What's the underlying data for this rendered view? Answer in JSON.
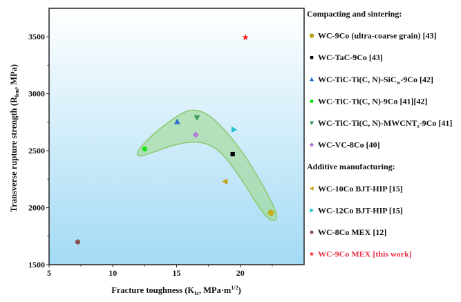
{
  "chart_data": {
    "type": "scatter",
    "xlabel": "Fracture toughness (K",
    "xlabel_sub": "Ic",
    "xlabel_tail": ", MPa·m",
    "xlabel_sup": "1/2",
    "xlabel_end": ")",
    "ylabel": "Transverse rupture strength (R",
    "ylabel_sub": "bm",
    "ylabel_tail": ", MPa)",
    "xlim": [
      5,
      25
    ],
    "ylim": [
      1500,
      3750
    ],
    "xticks": [
      5,
      10,
      15,
      20
    ],
    "yticks": [
      1500,
      2000,
      2500,
      3000,
      3500
    ],
    "grid": false,
    "legend_placement": "right-outside",
    "background": "gradient white to light blue",
    "legend_groups": [
      {
        "title": "Compacting and sintering:",
        "series": [
          0,
          1,
          2,
          3,
          4,
          5
        ]
      },
      {
        "title": "Additive manufacturing:",
        "series": [
          6,
          7,
          8,
          9
        ]
      }
    ],
    "series": [
      {
        "name": "WC-9Co (ultra-coarse grain) [43]",
        "marker": "plus-circle",
        "color": "#e8d21c",
        "x": 22.4,
        "y": 1955
      },
      {
        "name": "WC-TaC-9Co [43]",
        "marker": "square",
        "color": "#000000",
        "x": 19.4,
        "y": 2470
      },
      {
        "name": "WC-TiC-Ti(C, N)-SiC",
        "name_sub": "w",
        "name_tail": "-9Co [42]",
        "marker": "triangle-up",
        "color": "#2a6fd0",
        "x": 15.05,
        "y": 2755
      },
      {
        "name": "WC-TiC-Ti(C, N)-9Co [41][42]",
        "marker": "circle",
        "color": "#11e611",
        "x": 12.5,
        "y": 2515
      },
      {
        "name": "WC-TiC-Ti(C, N)-MWCNT",
        "name_sub": "s",
        "name_tail": "-9Co [41]",
        "marker": "triangle-down",
        "color": "#3a9a5c",
        "x": 16.6,
        "y": 2790
      },
      {
        "name": "WC-VC-8Co [40]",
        "marker": "diamond",
        "color": "#b07ad6",
        "x": 16.5,
        "y": 2640
      },
      {
        "name": "WC-10Co BJT-HIP [15]",
        "marker": "triangle-left",
        "color": "#c9a020",
        "x": 18.8,
        "y": 2230
      },
      {
        "name": "WC-12Co BJT-HIP [15]",
        "marker": "triangle-right",
        "color": "#1fc4d2",
        "x": 19.5,
        "y": 2685
      },
      {
        "name": "WC-8Co MEX [12]",
        "marker": "circle",
        "color": "#8a5050",
        "x": 7.25,
        "y": 1700
      },
      {
        "name": "WC-9Co MEX [this work]",
        "marker": "star",
        "color": "#ff2020",
        "label_color": "#ee3344",
        "x": 20.4,
        "y": 3495
      }
    ],
    "highlight_region": {
      "color": "#9fd88f",
      "outline_color": "#8cc870",
      "points": [
        [
          11.79,
          2480
        ],
        [
          13.0,
          2633
        ],
        [
          15.0,
          2805
        ],
        [
          16.15,
          2866
        ],
        [
          17.3,
          2836
        ],
        [
          18.56,
          2714
        ],
        [
          20.18,
          2491
        ],
        [
          21.6,
          2228
        ],
        [
          22.78,
          1985
        ],
        [
          22.87,
          1893
        ],
        [
          22.33,
          1883
        ],
        [
          21.43,
          2005
        ],
        [
          20.0,
          2268
        ],
        [
          18.56,
          2481
        ],
        [
          17.49,
          2562
        ],
        [
          16.24,
          2582
        ],
        [
          14.8,
          2552
        ],
        [
          13.0,
          2480
        ],
        [
          12.1,
          2446
        ]
      ]
    }
  }
}
